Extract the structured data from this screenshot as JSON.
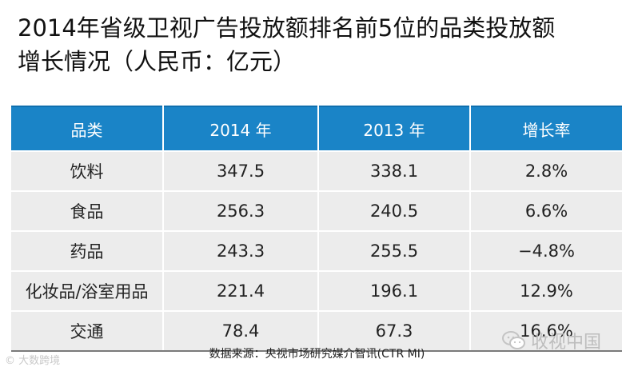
{
  "title": {
    "line1": "2014年省级卫视广告投放额排名前5位的品类投放额",
    "line2": "增长情况（人民币：亿元）"
  },
  "chart_data": {
    "type": "table",
    "columns": [
      "品类",
      "2014 年",
      "2013 年",
      "增长率"
    ],
    "rows": [
      [
        "饮料",
        "347.5",
        "338.1",
        "2.8%"
      ],
      [
        "食品",
        "256.3",
        "240.5",
        "6.6%"
      ],
      [
        "药品",
        "243.3",
        "255.5",
        "−4.8%"
      ],
      [
        "化妆品/浴室用品",
        "221.4",
        "196.1",
        "12.9%"
      ],
      [
        "交通",
        "78.4",
        "67.3",
        "16.6%"
      ]
    ]
  },
  "source": "数据来源：央视市场研究媒介智讯(CTR MI)",
  "watermarks": {
    "left": "© 大数跨境",
    "right": "收视中国"
  },
  "colors": {
    "header_bg": "#1a84c7",
    "row_bg": "#ececec"
  }
}
